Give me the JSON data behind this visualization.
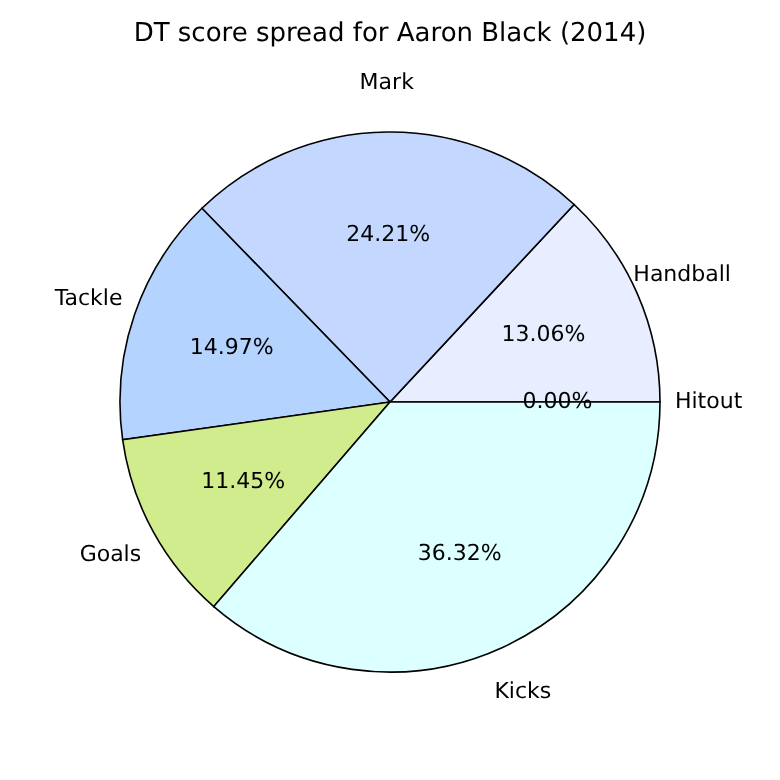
{
  "chart_data": {
    "type": "pie",
    "title": "DT score spread for Aaron Black (2014)",
    "categories": [
      "Hitout",
      "Handball",
      "Mark",
      "Tackle",
      "Goals",
      "Kicks"
    ],
    "values": [
      0.0,
      13.06,
      24.21,
      14.97,
      11.45,
      36.32
    ],
    "colors": [
      "#f0f0ff",
      "#e8eeff",
      "#c4d8ff",
      "#b4d4ff",
      "#d0ec8c",
      "#dcffff"
    ],
    "value_labels": [
      "0.00%",
      "13.06%",
      "24.21%",
      "14.97%",
      "11.45%",
      "36.32%"
    ],
    "legend": false
  }
}
